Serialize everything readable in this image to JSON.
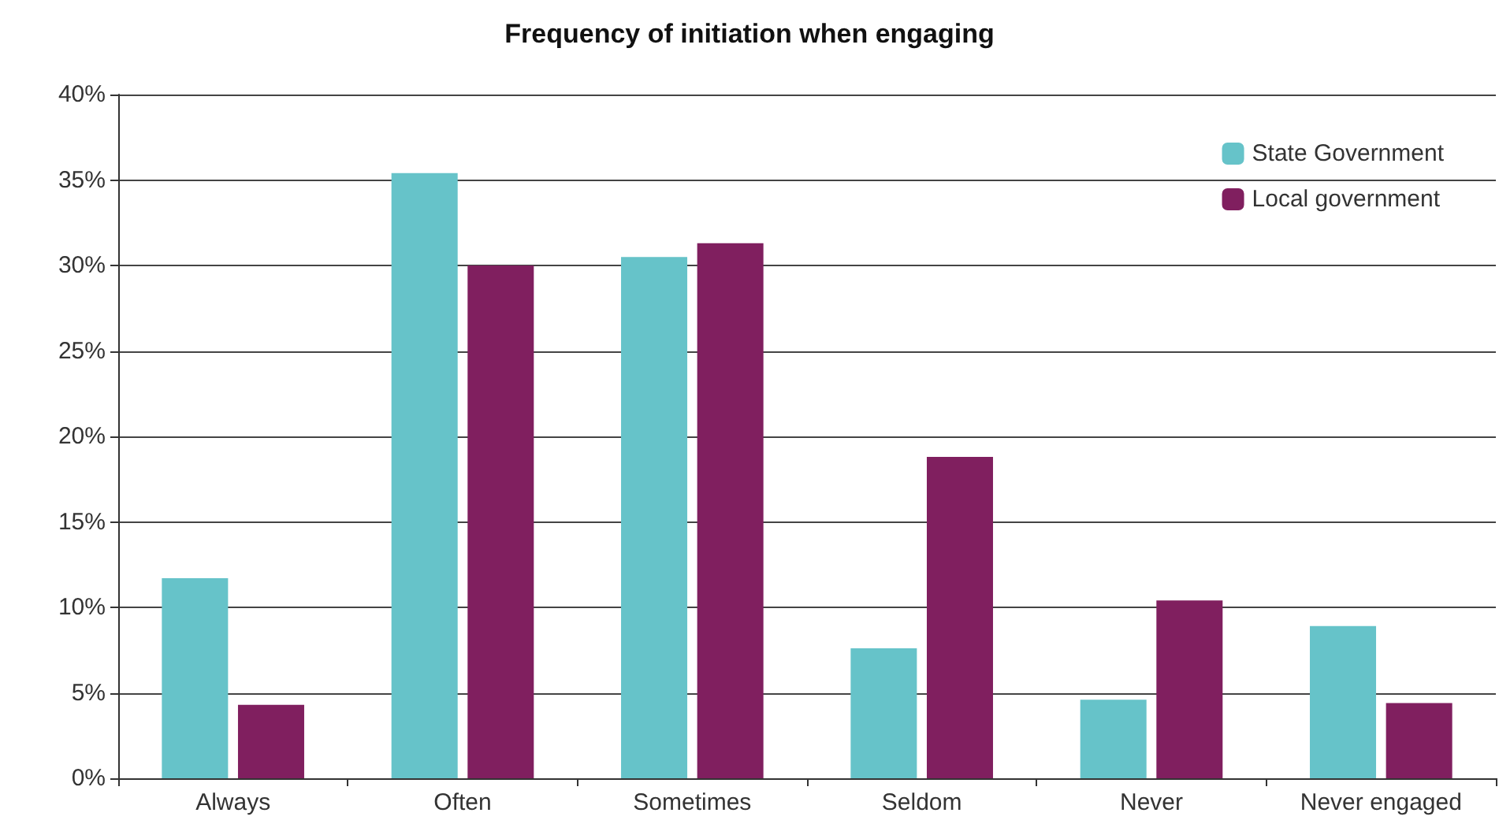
{
  "chart_data": {
    "type": "bar",
    "title": "Frequency of initiation when engaging",
    "categories": [
      "Always",
      "Often",
      "Sometimes",
      "Seldom",
      "Never",
      "Never engaged"
    ],
    "series": [
      {
        "name": "State Government",
        "color": "#66c3c9",
        "values": [
          11.7,
          35.4,
          30.5,
          7.6,
          4.6,
          8.9
        ]
      },
      {
        "name": "Local government",
        "color": "#801f5f",
        "values": [
          4.3,
          30.0,
          31.3,
          18.8,
          10.4,
          4.4
        ]
      }
    ],
    "ylim": [
      0,
      40
    ],
    "yticks": [
      {
        "value": 0,
        "label": "0%"
      },
      {
        "value": 5,
        "label": "5%"
      },
      {
        "value": 10,
        "label": "10%"
      },
      {
        "value": 15,
        "label": "15%"
      },
      {
        "value": 20,
        "label": "20%"
      },
      {
        "value": 25,
        "label": "25%"
      },
      {
        "value": 30,
        "label": "30%"
      },
      {
        "value": 35,
        "label": "35%"
      },
      {
        "value": 40,
        "label": "40%"
      }
    ],
    "grid": "y",
    "legend": "top right"
  }
}
